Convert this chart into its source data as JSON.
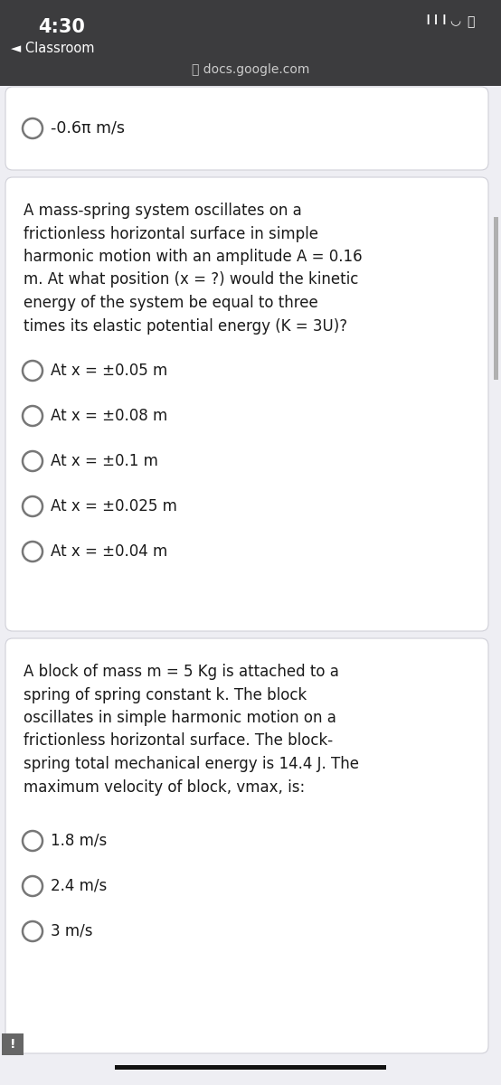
{
  "bg_color": "#3a3a3c",
  "content_bg": "#eeeef3",
  "card_bg": "#ffffff",
  "time": "4:30",
  "back_label": "◄ Classroom",
  "url_text": "docs.google.com",
  "last_option_card1": "-0.6π m/s",
  "q1_text_lines": [
    "A mass-spring system oscillates on a",
    "frictionless horizontal surface in simple",
    "harmonic motion with an amplitude A = 0.16",
    "m. At what position (x = ?) would the kinetic",
    "energy of the system be equal to three",
    "times its elastic potential energy (K = 3U)?"
  ],
  "q1_options": [
    "At x = ±0.05 m",
    "At x = ±0.08 m",
    "At x = ±0.1 m",
    "At x = ±0.025 m",
    "At x = ±0.04 m"
  ],
  "q2_text_lines": [
    "A block of mass m = 5 Kg is attached to a",
    "spring of spring constant k. The block",
    "oscillates in simple harmonic motion on a",
    "frictionless horizontal surface. The block-",
    "spring total mechanical energy is 14.4 J. The",
    "maximum velocity of block, vmax, is:"
  ],
  "q2_options": [
    "1.8 m/s",
    "2.4 m/s",
    "3 m/s"
  ],
  "text_color": "#1a1a1a",
  "circle_color": "#555555",
  "circle_edge_color": "#777777",
  "url_color": "#cccccc",
  "header_text_color": "#ffffff",
  "nav_bg": "#3c3c3e",
  "card_edge_color": "#d0d0d8",
  "scroll_color": "#b0b0b0",
  "bottom_bar_color": "#111111",
  "notif_bg": "#666666"
}
